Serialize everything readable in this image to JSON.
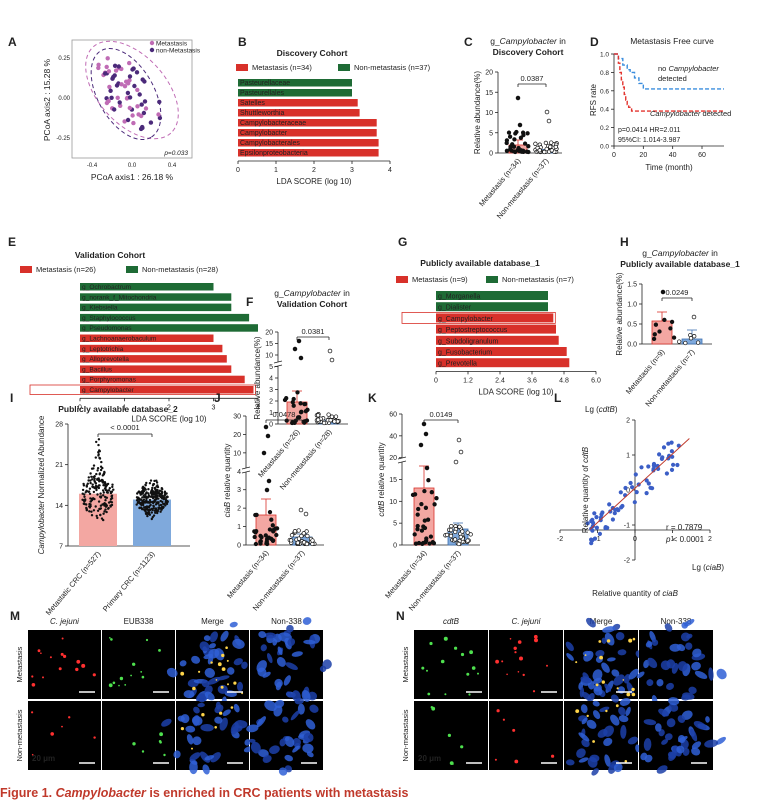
{
  "figure": {
    "caption_prefix": "Figure 1.",
    "caption_genus": "Campylobacter",
    "caption_rest": "is enriched in CRC patients with metastasis"
  },
  "colors": {
    "red": "#d8312a",
    "green": "#1e6b35",
    "pink": "#f3a7a2",
    "blue": "#7fa9dc",
    "dark_purple": "#4b2a7a",
    "light_purple": "#c06cb5"
  },
  "panels": {
    "A": {
      "letter": "A",
      "legend": [
        "Metastasis",
        "non-Metastasis"
      ],
      "xlabel": "PCoA axis1 : 26.18 %",
      "ylabel": "PCoA axis2 : 15.28 %",
      "p": "p=0.033",
      "xticks": [
        "-0.4",
        "0.0",
        "0.4"
      ],
      "yticks": [
        "0.25",
        "0.00",
        "-0.25"
      ]
    },
    "B": {
      "letter": "B",
      "title": "Discovery Cohort",
      "legend": [
        "Metastasis (n=34)",
        "Non-metastasis (n=37)"
      ],
      "xlabel": "LDA SCORE (log 10)",
      "xticks": [
        "0",
        "1",
        "2",
        "3",
        "4"
      ]
    },
    "C": {
      "letter": "C",
      "title_prefix": "g_",
      "title_genus": "Campylobacter",
      "title_suffix": " in",
      "title_line2": "Discovery Cohort",
      "ylabel": "Relative abundance(%)",
      "p": "0.0387",
      "yticks": [
        "0",
        "5",
        "10",
        "15",
        "20"
      ],
      "groups": [
        "Metastasis (n=34)",
        "Non-metastasis (n=37)"
      ]
    },
    "D": {
      "letter": "D",
      "title": "Metastasis Free curve",
      "ylabel": "RFS rate",
      "xlabel": "Time (month)",
      "xticks": [
        "0",
        "20",
        "40",
        "60"
      ],
      "yticks": [
        "1.0",
        "0.8",
        "0.6",
        "0.4",
        "0.2",
        "0.0"
      ],
      "label_blue_1": "no",
      "label_blue_genus": "Campylobacter",
      "label_blue_2": "detected",
      "label_red_genus": "Campylobacter",
      "label_red_2": "detected",
      "stats1": "p=0.0414   HR=2.011",
      "stats2": "95%CI: 1.014-3.987"
    },
    "E": {
      "letter": "E",
      "title": "Validation Cohort",
      "legend": [
        "Metastasis (n=26)",
        "Non-metastasis (n=28)"
      ],
      "xlabel": "LDA SCORE (log 10)",
      "xticks": [
        "0",
        "1",
        "2",
        "3",
        "4"
      ]
    },
    "F": {
      "letter": "F",
      "title_prefix": "g_",
      "title_genus": "Campylobacter",
      "title_suffix": " in",
      "title_line2": "Validation Cohort",
      "ylabel": "Relative abundance(%)",
      "p": "0.0381",
      "yticks": [
        "0",
        "1",
        "2",
        "3",
        "4",
        "5",
        "10",
        "15",
        "20"
      ],
      "groups": [
        "Metastasis (n=26)",
        "Non-metastasis (n=28)"
      ]
    },
    "G": {
      "letter": "G",
      "title": "Publicly available database_1",
      "legend": [
        "Metastasis (n=9)",
        "Non-metastasis (n=7)"
      ],
      "xlabel": "LDA SCORE (log 10)",
      "xticks": [
        "0",
        "1.2",
        "2.4",
        "3.6",
        "4.8",
        "6.0"
      ]
    },
    "H": {
      "letter": "H",
      "title_prefix": "g_",
      "title_genus": "Campylobacter",
      "title_suffix": " in",
      "title_line2": "Publicly available database_1",
      "ylabel": "Relative abundance(%)",
      "p": "0.0249",
      "yticks": [
        "0.0",
        "0.5",
        "1.0",
        "1.5"
      ],
      "groups": [
        "Metastasis (n=9)",
        "Non-metastasis (n=7)"
      ]
    },
    "I": {
      "letter": "I",
      "title": "Publicly available database_2",
      "ylabel_genus": "Campylobacter",
      "ylabel_rest": " Normalized Abundance",
      "p": "< 0.0001",
      "yticks": [
        "7",
        "14",
        "21",
        "28"
      ],
      "groups": [
        "Metastatic CRC (n=527)",
        "Primary CRC (n=1123)"
      ]
    },
    "J": {
      "letter": "J",
      "ylabel_gene": "ciaB",
      "ylabel_rest": " relative quantity",
      "p": "0.0478",
      "yticks": [
        "0",
        "1",
        "2",
        "3",
        "4",
        "10",
        "20",
        "30"
      ],
      "groups": [
        "Metastasis (n=34)",
        "Non-metastasis (n=37)"
      ]
    },
    "K": {
      "letter": "K",
      "ylabel_gene": "cdtB",
      "ylabel_rest": " relative quantity",
      "p": "0.0149",
      "yticks": [
        "0",
        "5",
        "10",
        "15",
        "20",
        "40",
        "60"
      ],
      "groups": [
        "Metastasis (n=34)",
        "Non-metastasis (n=37)"
      ]
    },
    "L": {
      "letter": "L",
      "top_label_prefix": "Lg (",
      "top_label_gene": "cdtB",
      "top_label_suffix": ")",
      "right_label_prefix": "Lg (",
      "right_label_gene": "ciaB",
      "right_label_suffix": ")",
      "ylabel_prefix": "Relative quantity of ",
      "ylabel_gene": "cdtB",
      "xlabel_prefix": "Relative quantity of ",
      "xlabel_gene": "ciaB",
      "r": "r = 0.7879",
      "p_prefix": "p",
      "p_rest": " < 0.0001",
      "xticks": [
        "-2",
        "-1",
        "0",
        "1",
        "2"
      ],
      "yticks": [
        "2",
        "1",
        "0",
        "-1",
        "-2"
      ]
    },
    "M": {
      "letter": "M",
      "columns": [
        "C. jejuni",
        "EUB338",
        "Merge",
        "Non-338"
      ],
      "rows": [
        "Metastasis",
        "Non-metastasis"
      ],
      "scale": "20 μm"
    },
    "N": {
      "letter": "N",
      "columns": [
        "cdtB",
        "C. jejuni",
        "Merge",
        "Non-338"
      ],
      "rows": [
        "Metastasis",
        "Non-metastasis"
      ],
      "scale": "20 μm"
    }
  },
  "chart_data": [
    {
      "panel": "B",
      "type": "bar",
      "orientation": "horizontal",
      "categories": [
        "Pasteurellaceae",
        "Pasteurellales",
        "Satelles",
        "Shuttleworthia",
        "Campylobacteraceae",
        "Campylobacter",
        "Campylobacterales",
        "Epsilonproteobacteria"
      ],
      "values": [
        3.0,
        3.0,
        3.15,
        3.2,
        3.65,
        3.65,
        3.7,
        3.7
      ],
      "groups": [
        "non-metastasis",
        "non-metastasis",
        "metastasis",
        "metastasis",
        "metastasis",
        "metastasis",
        "metastasis",
        "metastasis"
      ],
      "xlim": [
        0,
        4
      ]
    },
    {
      "panel": "C",
      "type": "bar",
      "categories": [
        "Metastasis (n=34)",
        "Non-metastasis (n=37)"
      ],
      "values": [
        1.0,
        0.2
      ],
      "errors": [
        0.6,
        0.1
      ],
      "ylim": [
        0,
        20
      ]
    },
    {
      "panel": "D",
      "type": "line",
      "xlim": [
        0,
        75
      ],
      "ylim": [
        0,
        1
      ],
      "series": [
        {
          "x": [
            0,
            2,
            3,
            5,
            6,
            8,
            9,
            11,
            14,
            17,
            20,
            75
          ],
          "y": [
            1.0,
            1.0,
            0.95,
            0.95,
            0.88,
            0.88,
            0.83,
            0.8,
            0.74,
            0.68,
            0.62,
            0.62
          ]
        },
        {
          "x": [
            0,
            2,
            3,
            4,
            5,
            6,
            7,
            8,
            9,
            10,
            12,
            75
          ],
          "y": [
            1.0,
            1.0,
            0.9,
            0.8,
            0.72,
            0.64,
            0.56,
            0.5,
            0.45,
            0.42,
            0.38,
            0.38
          ]
        }
      ]
    },
    {
      "panel": "E",
      "type": "bar",
      "orientation": "horizontal",
      "categories": [
        "g_Ochrobactrum",
        "g_norank_f_Mitochondria",
        "g_Klebsiella",
        "g_Staphylococcus",
        "g_Pseudomonas",
        "g_Lachnoanaerobaculum",
        "g_Leptotrichia",
        "g_Alloprevotella",
        "g_Bacillus",
        "g_Porphyromonas",
        "g_Campylobacter"
      ],
      "values": [
        3.0,
        3.4,
        3.4,
        3.8,
        4.0,
        3.0,
        3.2,
        3.3,
        3.4,
        3.7,
        3.9
      ],
      "groups": [
        "non-metastasis",
        "non-metastasis",
        "non-metastasis",
        "non-metastasis",
        "non-metastasis",
        "metastasis",
        "metastasis",
        "metastasis",
        "metastasis",
        "metastasis",
        "metastasis"
      ],
      "xlim": [
        0,
        4
      ]
    },
    {
      "panel": "F",
      "type": "bar",
      "categories": [
        "Metastasis (n=26)",
        "Non-metastasis (n=28)"
      ],
      "values": [
        1.9,
        0.15
      ],
      "errors": [
        0.8,
        0.08
      ]
    },
    {
      "panel": "G",
      "type": "bar",
      "orientation": "horizontal",
      "categories": [
        "g_Morganella",
        "g_Dialister",
        "g_Campylobacter",
        "g_Peptostreptococcus",
        "g_Subdoligranulum",
        "g_Fusobacterium",
        "g_Prevotella"
      ],
      "values": [
        4.2,
        4.2,
        4.4,
        4.5,
        4.6,
        4.9,
        5.0
      ],
      "groups": [
        "non-metastasis",
        "non-metastasis",
        "metastasis",
        "metastasis",
        "metastasis",
        "metastasis",
        "metastasis"
      ],
      "xlim": [
        0,
        6
      ]
    },
    {
      "panel": "H",
      "type": "bar",
      "categories": [
        "Metastasis (n=9)",
        "Non-metastasis (n=7)"
      ],
      "values": [
        0.35,
        0.1
      ],
      "errors": [
        0.12,
        0.14
      ],
      "ylim": [
        0,
        1.5
      ]
    },
    {
      "panel": "I",
      "type": "bar",
      "categories": [
        "Metastatic CRC (n=527)",
        "Primary CRC (n=1123)"
      ],
      "values": [
        16.0,
        15.0
      ],
      "ylim": [
        7,
        28
      ]
    },
    {
      "panel": "J",
      "type": "bar",
      "categories": [
        "Metastasis (n=34)",
        "Non-metastasis (n=37)"
      ],
      "values": [
        2.2,
        0.6
      ],
      "errors": [
        0.8,
        0.15
      ]
    },
    {
      "panel": "K",
      "type": "bar",
      "categories": [
        "Metastasis (n=34)",
        "Non-metastasis (n=37)"
      ],
      "values": [
        6.8,
        1.8
      ],
      "errors": [
        2.0,
        0.6
      ]
    },
    {
      "panel": "L",
      "type": "scatter",
      "xlim": [
        -2,
        2
      ],
      "ylim": [
        -2,
        2
      ],
      "fit": {
        "slope": 0.98,
        "intercept": 0.05
      }
    }
  ]
}
